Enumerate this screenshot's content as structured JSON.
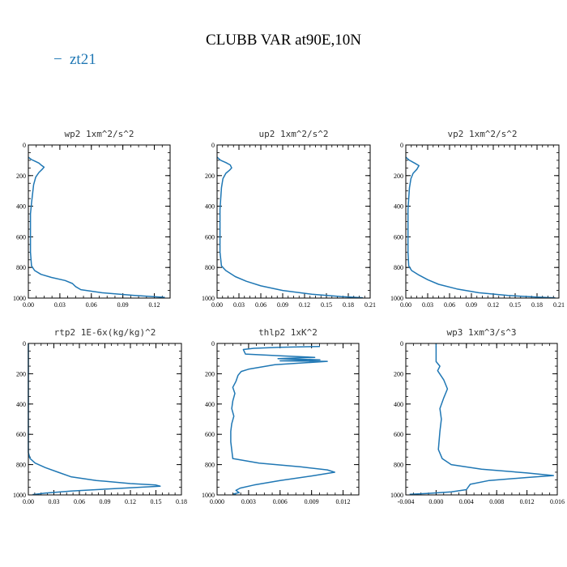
{
  "figure_title": "CLUBB VAR at90E,10N",
  "legend": {
    "label": "zt21",
    "marker": "−",
    "color": "#1f77b4"
  },
  "chart_data": [
    {
      "type": "line",
      "title": "wp2  1xm^2/s^2",
      "xlim": [
        0,
        0.135
      ],
      "xticks": [
        0.0,
        0.03,
        0.06,
        0.09,
        0.12
      ],
      "xtick_labels": [
        "0.00",
        "0.03",
        "0.06",
        "0.09",
        "0.12"
      ],
      "ylim": [
        1000,
        0
      ],
      "yticks": [
        0,
        200,
        400,
        600,
        800,
        1000
      ],
      "ytick_labels": [
        "0",
        "200",
        "400",
        "600",
        "800",
        "1000"
      ],
      "series": [
        {
          "name": "zt21",
          "x": [
            0.0,
            0.003,
            0.006,
            0.01,
            0.012,
            0.015,
            0.013,
            0.01,
            0.007,
            0.005,
            0.004,
            0.003,
            0.002,
            0.002,
            0.002,
            0.002,
            0.003,
            0.006,
            0.012,
            0.022,
            0.035,
            0.042,
            0.045,
            0.05,
            0.07,
            0.1,
            0.13
          ],
          "y": [
            80,
            95,
            105,
            118,
            130,
            145,
            160,
            180,
            210,
            260,
            320,
            380,
            450,
            520,
            600,
            700,
            790,
            820,
            845,
            865,
            885,
            905,
            925,
            945,
            965,
            982,
            995
          ]
        }
      ]
    },
    {
      "type": "line",
      "title": "up2  1xm^2/s^2",
      "xlim": [
        0,
        0.21
      ],
      "xticks": [
        0.0,
        0.03,
        0.06,
        0.09,
        0.12,
        0.15,
        0.18,
        0.21
      ],
      "xtick_labels": [
        "0.00",
        "0.03",
        "0.06",
        "0.09",
        "0.12",
        "0.15",
        "0.18",
        "0.21"
      ],
      "ylim": [
        1000,
        0
      ],
      "yticks": [
        0,
        200,
        400,
        600,
        800,
        1000
      ],
      "ytick_labels": [
        "0",
        "200",
        "400",
        "600",
        "800",
        "1000"
      ],
      "series": [
        {
          "name": "zt21",
          "x": [
            0.0,
            0.005,
            0.012,
            0.018,
            0.02,
            0.017,
            0.012,
            0.008,
            0.006,
            0.005,
            0.004,
            0.004,
            0.004,
            0.004,
            0.006,
            0.012,
            0.025,
            0.04,
            0.06,
            0.09,
            0.13,
            0.17,
            0.2
          ],
          "y": [
            80,
            100,
            115,
            130,
            150,
            165,
            185,
            220,
            280,
            350,
            420,
            500,
            600,
            700,
            790,
            820,
            860,
            890,
            920,
            950,
            975,
            990,
            998
          ]
        }
      ]
    },
    {
      "type": "line",
      "title": "vp2  1xm^2/s^2",
      "xlim": [
        0,
        0.21
      ],
      "xticks": [
        0.0,
        0.03,
        0.06,
        0.09,
        0.12,
        0.15,
        0.18,
        0.21
      ],
      "xtick_labels": [
        "0.00",
        "0.03",
        "0.06",
        "0.09",
        "0.12",
        "0.15",
        "0.18",
        "0.21"
      ],
      "ylim": [
        1000,
        0
      ],
      "yticks": [
        0,
        200,
        400,
        600,
        800,
        1000
      ],
      "ytick_labels": [
        "0",
        "200",
        "400",
        "600",
        "800",
        "1000"
      ],
      "series": [
        {
          "name": "zt21",
          "x": [
            0.0,
            0.005,
            0.012,
            0.018,
            0.015,
            0.01,
            0.007,
            0.005,
            0.004,
            0.003,
            0.003,
            0.003,
            0.003,
            0.004,
            0.008,
            0.018,
            0.03,
            0.045,
            0.07,
            0.1,
            0.14,
            0.18,
            0.205
          ],
          "y": [
            80,
            100,
            118,
            135,
            160,
            185,
            220,
            280,
            350,
            420,
            500,
            600,
            700,
            790,
            820,
            850,
            880,
            910,
            940,
            965,
            983,
            993,
            999
          ]
        }
      ]
    },
    {
      "type": "line",
      "title": "rtp2  1E-6x(kg/kg)^2",
      "xlim": [
        0,
        0.18
      ],
      "xticks": [
        0.0,
        0.03,
        0.06,
        0.09,
        0.12,
        0.15,
        0.18
      ],
      "xtick_labels": [
        "0.00",
        "0.03",
        "0.06",
        "0.09",
        "0.12",
        "0.15",
        "0.18"
      ],
      "ylim": [
        1000,
        0
      ],
      "yticks": [
        0,
        200,
        400,
        600,
        800,
        1000
      ],
      "ytick_labels": [
        "0",
        "200",
        "400",
        "600",
        "800",
        "1000"
      ],
      "series": [
        {
          "name": "zt21",
          "x": [
            0.0,
            0.0,
            0.002,
            0.008,
            0.02,
            0.035,
            0.05,
            0.08,
            0.12,
            0.15,
            0.155,
            0.13,
            0.09,
            0.05,
            0.02,
            0.005
          ],
          "y": [
            0,
            720,
            760,
            790,
            820,
            850,
            880,
            905,
            925,
            935,
            942,
            950,
            962,
            975,
            988,
            998
          ]
        }
      ]
    },
    {
      "type": "line",
      "title": "thlp2  1xK^2",
      "xlim": [
        0,
        0.0135
      ],
      "xticks": [
        0.0,
        0.003,
        0.006,
        0.009,
        0.012
      ],
      "xtick_labels": [
        "0.000",
        "0.003",
        "0.006",
        "0.009",
        "0.012"
      ],
      "ylim": [
        1000,
        0
      ],
      "yticks": [
        0,
        200,
        400,
        600,
        800,
        1000
      ],
      "ytick_labels": [
        "0",
        "200",
        "400",
        "600",
        "800",
        "1000"
      ],
      "series": [
        {
          "name": "zt21",
          "x": [
            0.0098,
            0.006,
            0.0035,
            0.0025,
            0.0027,
            0.006,
            0.0093,
            0.0058,
            0.0098,
            0.006,
            0.0105,
            0.0055,
            0.003,
            0.0023,
            0.002,
            0.0018,
            0.0015,
            0.0017,
            0.0015,
            0.0014,
            0.0016,
            0.0014,
            0.0013,
            0.0013,
            0.0015,
            0.004,
            0.008,
            0.0105,
            0.0112,
            0.009,
            0.006,
            0.0035,
            0.0022,
            0.0018,
            0.0021,
            0.0016,
            0.0018
          ],
          "y": [
            20,
            25,
            32,
            40,
            70,
            82,
            92,
            100,
            108,
            115,
            118,
            140,
            170,
            185,
            210,
            250,
            290,
            330,
            380,
            430,
            480,
            530,
            580,
            650,
            760,
            790,
            815,
            835,
            850,
            875,
            905,
            935,
            955,
            970,
            985,
            993,
            999
          ]
        }
      ]
    },
    {
      "type": "line",
      "title": "wp3  1xm^3/s^3",
      "xlim": [
        -0.004,
        0.016
      ],
      "xticks": [
        -0.004,
        0.0,
        0.004,
        0.008,
        0.012,
        0.016
      ],
      "xtick_labels": [
        "-0.004",
        "0.000",
        "0.004",
        "0.008",
        "0.012",
        "0.016"
      ],
      "ylim": [
        1000,
        0
      ],
      "yticks": [
        0,
        200,
        400,
        600,
        800,
        1000
      ],
      "ytick_labels": [
        "0",
        "200",
        "400",
        "600",
        "800",
        "1000"
      ],
      "series": [
        {
          "name": "zt21",
          "x": [
            0.0,
            0.0,
            0.0005,
            0.0002,
            0.001,
            0.0015,
            0.001,
            0.0005,
            0.0007,
            0.0005,
            0.0003,
            0.0008,
            0.002,
            0.006,
            0.012,
            0.0155,
            0.012,
            0.007,
            0.0045,
            0.004,
            0.002,
            -0.001,
            -0.0035
          ],
          "y": [
            0,
            120,
            150,
            180,
            240,
            300,
            360,
            430,
            500,
            580,
            700,
            760,
            800,
            830,
            855,
            872,
            885,
            905,
            930,
            965,
            980,
            990,
            996
          ]
        }
      ]
    }
  ]
}
